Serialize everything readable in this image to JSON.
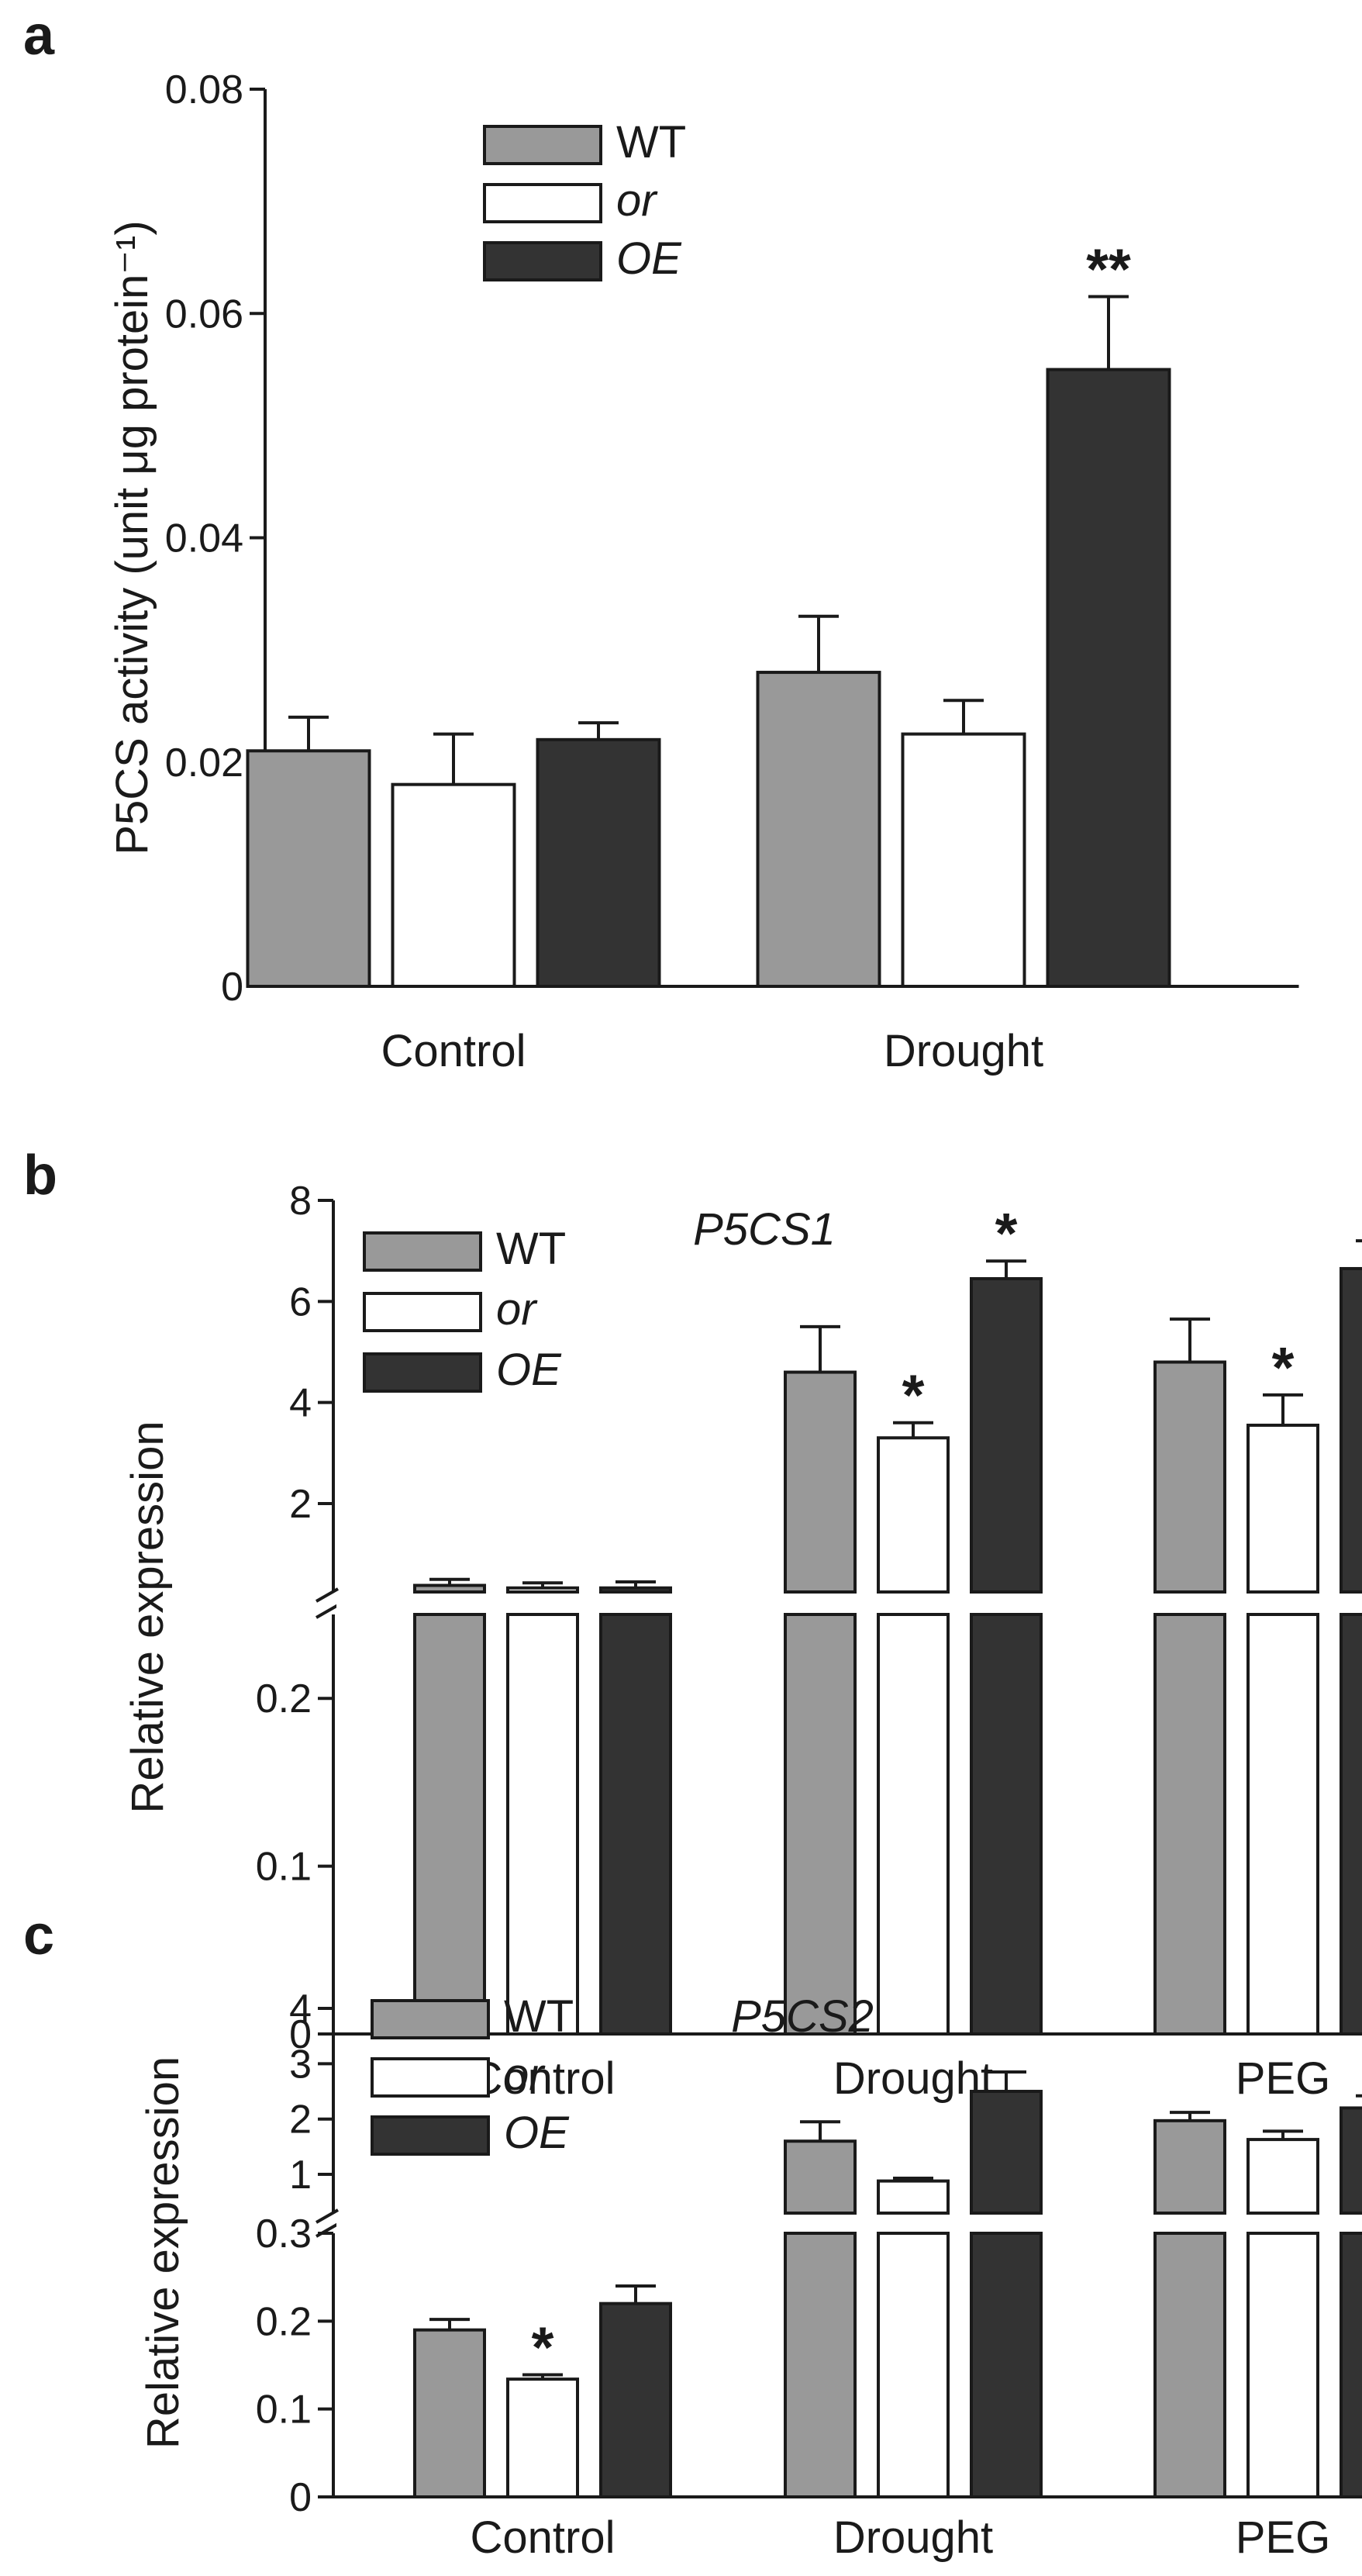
{
  "chart_data": [
    {
      "type": "bar",
      "panel": "a",
      "ylabel": "P5CS activity (unit μg protein⁻¹)",
      "categories": [
        "Control",
        "Drought"
      ],
      "series": [
        {
          "name": "WT",
          "color": "#999999",
          "values": [
            0.021,
            0.028
          ],
          "errors": [
            0.003,
            0.005
          ],
          "sig": [
            "",
            ""
          ]
        },
        {
          "name": "or",
          "color": "#ffffff",
          "values": [
            0.018,
            0.0225
          ],
          "errors": [
            0.0045,
            0.003
          ],
          "sig": [
            "",
            ""
          ]
        },
        {
          "name": "OE",
          "color": "#333333",
          "values": [
            0.022,
            0.055
          ],
          "errors": [
            0.0015,
            0.0065
          ],
          "sig": [
            "",
            "**"
          ]
        }
      ],
      "ylim": [
        0,
        0.08
      ],
      "yticks": [
        0,
        0.02,
        0.04,
        0.06,
        0.08
      ],
      "ytick_labels": [
        "0",
        "0.02",
        "0.04",
        "0.06",
        "0.08"
      ]
    },
    {
      "type": "bar",
      "panel": "b",
      "title": "P5CS1",
      "ylabel": "Relative expression",
      "categories": [
        "Control",
        "Drought",
        "PEG"
      ],
      "series": [
        {
          "name": "WT",
          "color": "#999999",
          "values": [
            0.38,
            4.6,
            4.8
          ],
          "errors": [
            0.12,
            0.9,
            0.85
          ],
          "sig": [
            "",
            "",
            ""
          ]
        },
        {
          "name": "or",
          "color": "#ffffff",
          "values": [
            0.33,
            3.3,
            3.55
          ],
          "errors": [
            0.1,
            0.3,
            0.6
          ],
          "sig": [
            "",
            "*",
            "*"
          ]
        },
        {
          "name": "OE",
          "color": "#333333",
          "values": [
            0.33,
            6.45,
            6.65
          ],
          "errors": [
            0.12,
            0.35,
            0.55
          ],
          "sig": [
            "",
            "*",
            "*"
          ]
        }
      ],
      "broken_axis": {
        "lower": {
          "ylim": [
            0,
            0.25
          ],
          "yticks": [
            0,
            0.1,
            0.2
          ],
          "ytick_labels": [
            "0",
            "0.1",
            "0.2"
          ]
        },
        "upper": {
          "ylim": [
            0.25,
            8
          ],
          "yticks": [
            2,
            4,
            6,
            8
          ],
          "ytick_labels": [
            "2",
            "4",
            "6",
            "8"
          ]
        }
      }
    },
    {
      "type": "bar",
      "panel": "c",
      "title": "P5CS2",
      "ylabel": "Relative expression",
      "categories": [
        "Control",
        "Drought",
        "PEG"
      ],
      "series": [
        {
          "name": "WT",
          "color": "#999999",
          "values": [
            0.19,
            1.6,
            1.97
          ],
          "errors": [
            0.012,
            0.35,
            0.15
          ],
          "sig": [
            "",
            "",
            ""
          ]
        },
        {
          "name": "or",
          "color": "#ffffff",
          "values": [
            0.134,
            0.88,
            1.63
          ],
          "errors": [
            0.005,
            0.05,
            0.15
          ],
          "sig": [
            "*",
            "",
            ""
          ]
        },
        {
          "name": "OE",
          "color": "#333333",
          "values": [
            0.22,
            2.5,
            2.2
          ],
          "errors": [
            0.02,
            0.35,
            0.22
          ],
          "sig": [
            "",
            "",
            ""
          ]
        }
      ],
      "broken_axis": {
        "lower": {
          "ylim": [
            0,
            0.3
          ],
          "yticks": [
            0,
            0.1,
            0.2,
            0.3
          ],
          "ytick_labels": [
            "0",
            "0.1",
            "0.2",
            "0.3"
          ]
        },
        "upper": {
          "ylim": [
            0.3,
            4
          ],
          "yticks": [
            1,
            2,
            3,
            4
          ],
          "ytick_labels": [
            "1",
            "2",
            "3",
            "4"
          ]
        }
      }
    }
  ]
}
